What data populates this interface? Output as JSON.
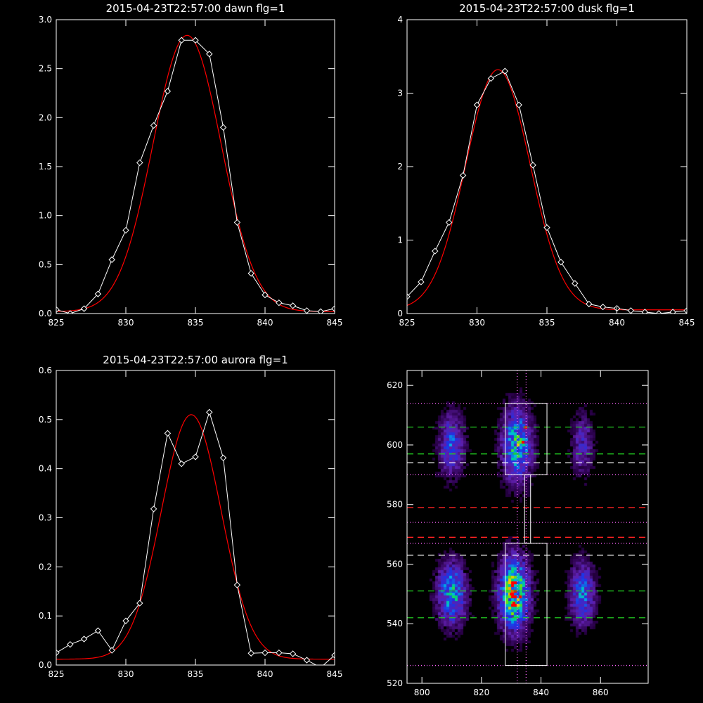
{
  "chart_data": [
    {
      "type": "line",
      "title": "2015-04-23T22:57:00 dawn flg=1",
      "xlabel": "",
      "ylabel": "",
      "xlim": [
        825,
        845
      ],
      "ylim": [
        0,
        3.0
      ],
      "xticks": [
        825,
        830,
        835,
        840,
        845
      ],
      "yticks": [
        0,
        0.5,
        1.0,
        1.5,
        2.0,
        2.5,
        3.0
      ],
      "ytick_labels": [
        "0.0",
        "0.5",
        "1.0",
        "1.5",
        "2.0",
        "2.5",
        "3.0"
      ],
      "colors": {
        "data": "#ffffff",
        "fit": "#ff0000"
      },
      "series": [
        {
          "role": "data",
          "marker": "diamond",
          "x": [
            825,
            826,
            827,
            828,
            829,
            830,
            831,
            832,
            833,
            834,
            835,
            836,
            837,
            838,
            839,
            840,
            841,
            842,
            843,
            844,
            845
          ],
          "y": [
            0.04,
            0.0,
            0.05,
            0.2,
            0.55,
            0.85,
            1.54,
            1.92,
            2.27,
            2.79,
            2.79,
            2.65,
            1.9,
            0.93,
            0.41,
            0.19,
            0.11,
            0.08,
            0.03,
            0.02,
            0.05
          ]
        },
        {
          "role": "fit",
          "model": "gaussian",
          "amp": 2.82,
          "center": 834.4,
          "sigma": 2.45,
          "offset": 0.02
        }
      ]
    },
    {
      "type": "line",
      "title": "2015-04-23T22:57:00 dusk flg=1",
      "xlabel": "",
      "ylabel": "",
      "xlim": [
        825,
        845
      ],
      "ylim": [
        0,
        4
      ],
      "xticks": [
        825,
        830,
        835,
        840,
        845
      ],
      "yticks": [
        0,
        1,
        2,
        3,
        4
      ],
      "ytick_labels": [
        "0",
        "1",
        "2",
        "3",
        "4"
      ],
      "colors": {
        "data": "#ffffff",
        "fit": "#ff0000"
      },
      "series": [
        {
          "role": "data",
          "marker": "diamond",
          "x": [
            825,
            826,
            827,
            828,
            829,
            830,
            831,
            832,
            833,
            834,
            835,
            836,
            837,
            838,
            839,
            840,
            841,
            842,
            843,
            844,
            845
          ],
          "y": [
            0.23,
            0.43,
            0.85,
            1.24,
            1.88,
            2.84,
            3.2,
            3.3,
            2.84,
            2.02,
            1.17,
            0.7,
            0.41,
            0.13,
            0.09,
            0.07,
            0.04,
            0.02,
            0.0,
            0.02,
            0.04
          ]
        },
        {
          "role": "fit",
          "model": "gaussian",
          "amp": 3.27,
          "center": 831.5,
          "sigma": 2.3,
          "offset": 0.05
        }
      ]
    },
    {
      "type": "line",
      "title": "2015-04-23T22:57:00 aurora flg=1",
      "xlabel": "",
      "ylabel": "",
      "xlim": [
        825,
        845
      ],
      "ylim": [
        0,
        0.6
      ],
      "xticks": [
        825,
        830,
        835,
        840,
        845
      ],
      "yticks": [
        0,
        0.1,
        0.2,
        0.3,
        0.4,
        0.5,
        0.6
      ],
      "ytick_labels": [
        "0.0",
        "0.1",
        "0.2",
        "0.3",
        "0.4",
        "0.5",
        "0.6"
      ],
      "colors": {
        "data": "#ffffff",
        "fit": "#ff0000"
      },
      "series": [
        {
          "role": "data",
          "marker": "diamond",
          "x": [
            825,
            826,
            827,
            828,
            829,
            830,
            831,
            832,
            833,
            834,
            835,
            836,
            837,
            838,
            839,
            840,
            841,
            842,
            843,
            844,
            845
          ],
          "y": [
            0.025,
            0.042,
            0.053,
            0.07,
            0.03,
            0.09,
            0.126,
            0.318,
            0.472,
            0.41,
            0.424,
            0.515,
            0.422,
            0.163,
            0.024,
            0.025,
            0.025,
            0.023,
            0.01,
            -0.005,
            0.02
          ]
        },
        {
          "role": "fit",
          "model": "gaussian",
          "amp": 0.498,
          "center": 834.7,
          "sigma": 2.15,
          "offset": 0.012
        }
      ]
    },
    {
      "type": "heatmap",
      "title": "",
      "xlabel": "",
      "ylabel": "",
      "xlim": [
        795,
        876
      ],
      "ylim": [
        520,
        625
      ],
      "xticks": [
        800,
        820,
        840,
        860
      ],
      "yticks": [
        520,
        540,
        560,
        580,
        600,
        620
      ],
      "blobs": [
        {
          "x": 810,
          "y": 600,
          "sx": 2.8,
          "sy": 7,
          "amp": 0.4
        },
        {
          "x": 832,
          "y": 600,
          "sx": 3.3,
          "sy": 8,
          "amp": 0.62
        },
        {
          "x": 854,
          "y": 600,
          "sx": 2.5,
          "sy": 7,
          "amp": 0.26
        },
        {
          "x": 810,
          "y": 550,
          "sx": 3.3,
          "sy": 7,
          "amp": 0.55
        },
        {
          "x": 831,
          "y": 550,
          "sx": 3.3,
          "sy": 8,
          "amp": 0.85
        },
        {
          "x": 854,
          "y": 550,
          "sx": 2.8,
          "sy": 7,
          "amp": 0.45
        }
      ],
      "boxes": [
        {
          "x0": 828,
          "x1": 842,
          "y0": 590,
          "y1": 614
        },
        {
          "x0": 828,
          "x1": 842,
          "y0": 526,
          "y1": 567
        },
        {
          "x0": 834.5,
          "x1": 836.5,
          "y0": 567,
          "y1": 590
        }
      ],
      "hlines": [
        {
          "y": 614,
          "color": "#ff66ff",
          "style": "dotted"
        },
        {
          "y": 606,
          "color": "#22cc22",
          "style": "dashed"
        },
        {
          "y": 597,
          "color": "#22cc22",
          "style": "dashed"
        },
        {
          "y": 594,
          "color": "#ffffff",
          "style": "dashed"
        },
        {
          "y": 590,
          "color": "#ff66ff",
          "style": "dotted"
        },
        {
          "y": 579,
          "color": "#ff2222",
          "style": "dashed"
        },
        {
          "y": 574,
          "color": "#ff66ff",
          "style": "dotted"
        },
        {
          "y": 569,
          "color": "#ff2222",
          "style": "dashed"
        },
        {
          "y": 567,
          "color": "#ff66ff",
          "style": "dotted"
        },
        {
          "y": 563,
          "color": "#ffffff",
          "style": "dashed"
        },
        {
          "y": 551,
          "color": "#22cc22",
          "style": "dashed"
        },
        {
          "y": 542,
          "color": "#22cc22",
          "style": "dashed"
        },
        {
          "y": 526,
          "color": "#ff66ff",
          "style": "dotted"
        }
      ],
      "vlines": [
        {
          "x": 832,
          "color": "#ff66ff",
          "style": "dotted"
        },
        {
          "x": 835,
          "color": "#ff66ff",
          "style": "dotted"
        }
      ],
      "hot_pixels": [
        {
          "x": 835,
          "y": 606
        },
        {
          "x": 834,
          "y": 601
        },
        {
          "x": 830,
          "y": 550
        },
        {
          "x": 833,
          "y": 549
        },
        {
          "x": 831,
          "y": 547
        }
      ]
    }
  ]
}
